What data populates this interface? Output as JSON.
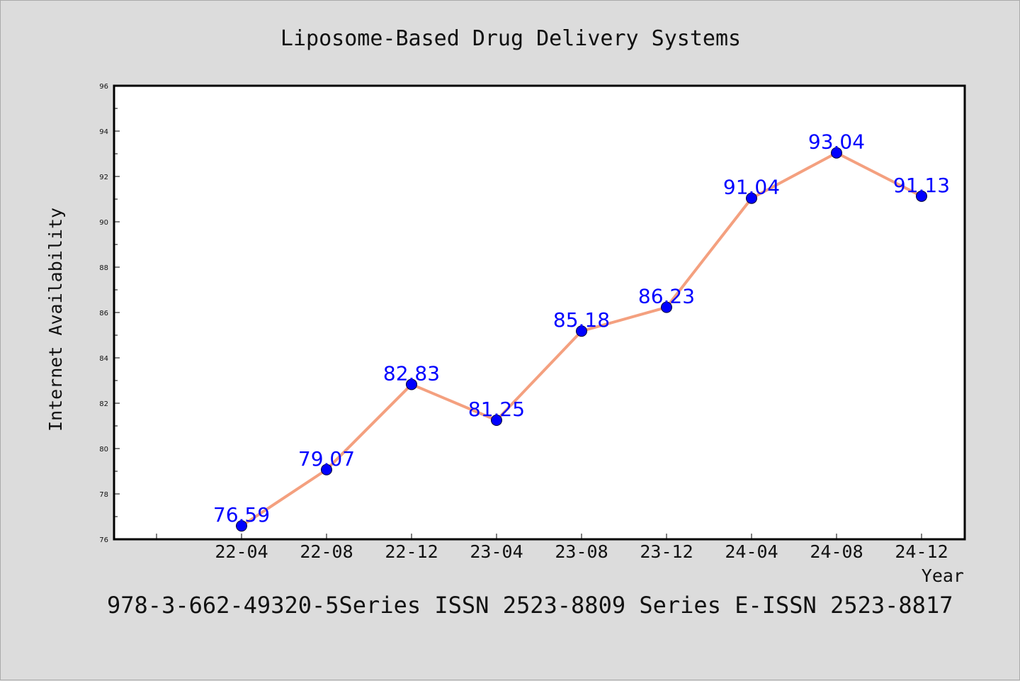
{
  "chart_data": {
    "type": "line",
    "title": "Liposome-Based Drug Delivery Systems",
    "xlabel": "Year",
    "ylabel": "Internet Availability",
    "categories": [
      "22-04",
      "22-08",
      "22-12",
      "23-04",
      "23-08",
      "23-12",
      "24-04",
      "24-08",
      "24-12"
    ],
    "series": [
      {
        "values": [
          76.59,
          79.07,
          82.83,
          81.25,
          85.18,
          86.23,
          91.04,
          93.04,
          91.13
        ]
      }
    ],
    "data_labels": [
      "76.59",
      "79.07",
      "82.83",
      "81.25",
      "85.18",
      "86.23",
      "91.04",
      "93.04",
      "91.13"
    ],
    "ylim": [
      76,
      96
    ],
    "yticks": [
      76,
      78,
      80,
      82,
      84,
      86,
      88,
      90,
      92,
      94,
      96
    ],
    "grid": false,
    "line_color": "#f4a07f",
    "marker_color": "#0000ff",
    "label_color": "#0000ff",
    "background_color": "#dcdcdc",
    "plot_background_color": "#ffffff"
  },
  "footer": "978-3-662-49320-5Series ISSN 2523-8809 Series E-ISSN 2523-8817"
}
